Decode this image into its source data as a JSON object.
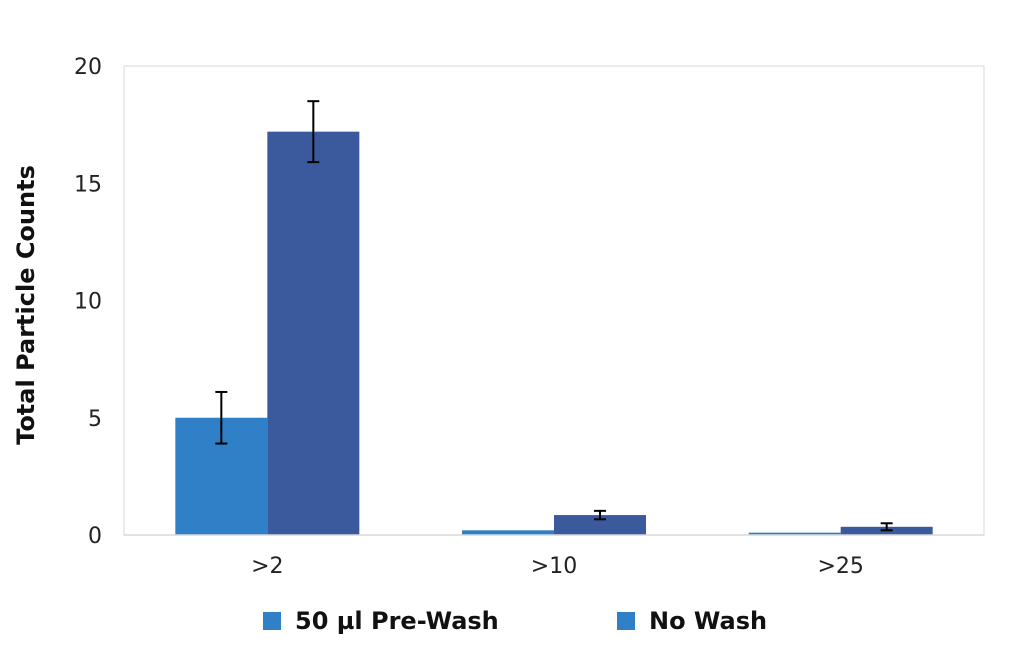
{
  "chart_data": {
    "type": "bar",
    "title": "",
    "xlabel": "",
    "ylabel": "Total Particle Counts",
    "ylim": [
      0,
      20
    ],
    "yticks": [
      0,
      5,
      10,
      15,
      20
    ],
    "ytick_labels": [
      "0",
      "5",
      "10",
      "15",
      "20"
    ],
    "categories": [
      ">2",
      ">10",
      ">25"
    ],
    "grid": false,
    "legend_position": "bottom",
    "series": [
      {
        "name": "50 µl Pre-Wash",
        "color": "#2f80c6",
        "values": [
          5.0,
          0.2,
          0.1
        ],
        "errors": [
          1.1,
          null,
          null
        ]
      },
      {
        "name": "No Wash",
        "color": "#3b5a9e",
        "values": [
          17.2,
          0.85,
          0.35
        ],
        "errors": [
          1.3,
          0.18,
          0.15
        ]
      }
    ],
    "legend_colors": [
      "#2f80c6",
      "#2f80c6"
    ]
  }
}
